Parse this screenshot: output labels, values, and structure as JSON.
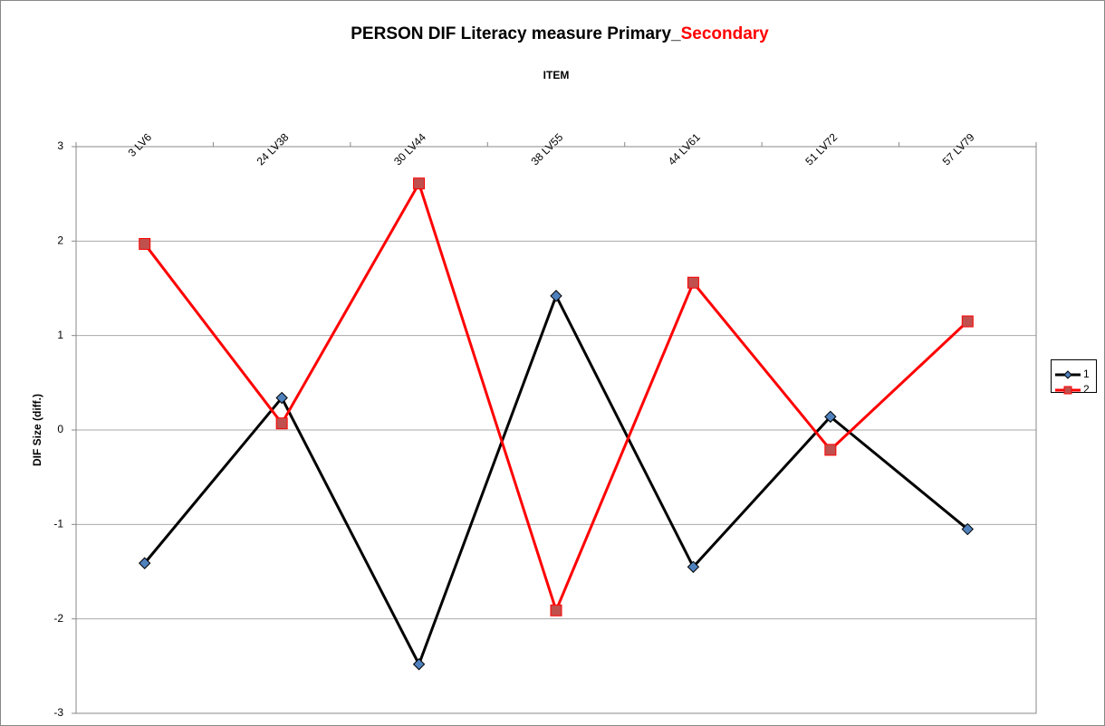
{
  "chart_data": {
    "type": "line",
    "title": [
      "PERSON DIF Literacy measure  Primary_",
      "Secondary"
    ],
    "title_colors": [
      "#000000",
      "#ff0000"
    ],
    "x_label": "ITEM",
    "y_label": "DIF Size (diff.)",
    "categories": [
      "3 LV6",
      "24 LV38",
      "30 LV44",
      "38 LV55",
      "44 LV61",
      "51 LV72",
      "57 LV79"
    ],
    "series": [
      {
        "name": "1",
        "color": "#000000",
        "marker": "diamond",
        "marker_color": "#4f81bd",
        "values": [
          -1.41,
          0.34,
          -2.48,
          1.42,
          -1.45,
          0.14,
          -1.05
        ]
      },
      {
        "name": "2",
        "color": "#ff0000",
        "marker": "square",
        "marker_color": "#c0504d",
        "values": [
          1.97,
          0.07,
          2.61,
          -1.91,
          1.56,
          -0.21,
          1.15
        ]
      }
    ],
    "ylim": [
      -3,
      3
    ],
    "yticks": [
      -3,
      -2,
      -1,
      0,
      1,
      2,
      3
    ],
    "grid": true,
    "legend": "right"
  }
}
